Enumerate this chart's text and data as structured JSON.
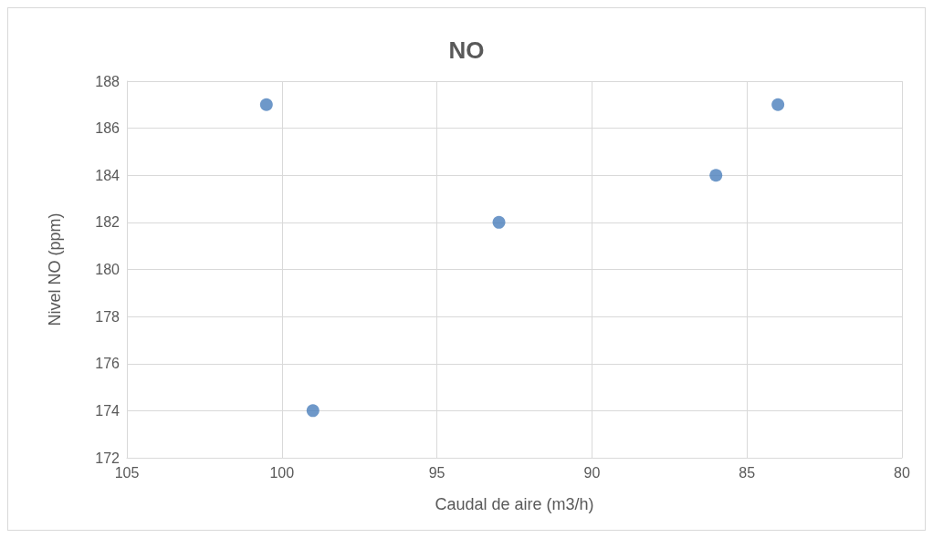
{
  "chart_data": {
    "type": "scatter",
    "title": "NO",
    "xlabel": "Caudal de aire (m3/h)",
    "ylabel": "Nivel NO (ppm)",
    "x": [
      100.5,
      99,
      93,
      86,
      84
    ],
    "series": [
      {
        "color": "#4a7ebb",
        "values": [
          187,
          174,
          182,
          184,
          187
        ]
      }
    ],
    "xlim": [
      105,
      80
    ],
    "xticks": [
      105,
      100,
      95,
      90,
      85,
      80
    ],
    "ylim": [
      172,
      188
    ],
    "yticks": [
      172,
      174,
      176,
      178,
      180,
      182,
      184,
      186,
      188
    ],
    "grid": true,
    "marker": "circle"
  }
}
